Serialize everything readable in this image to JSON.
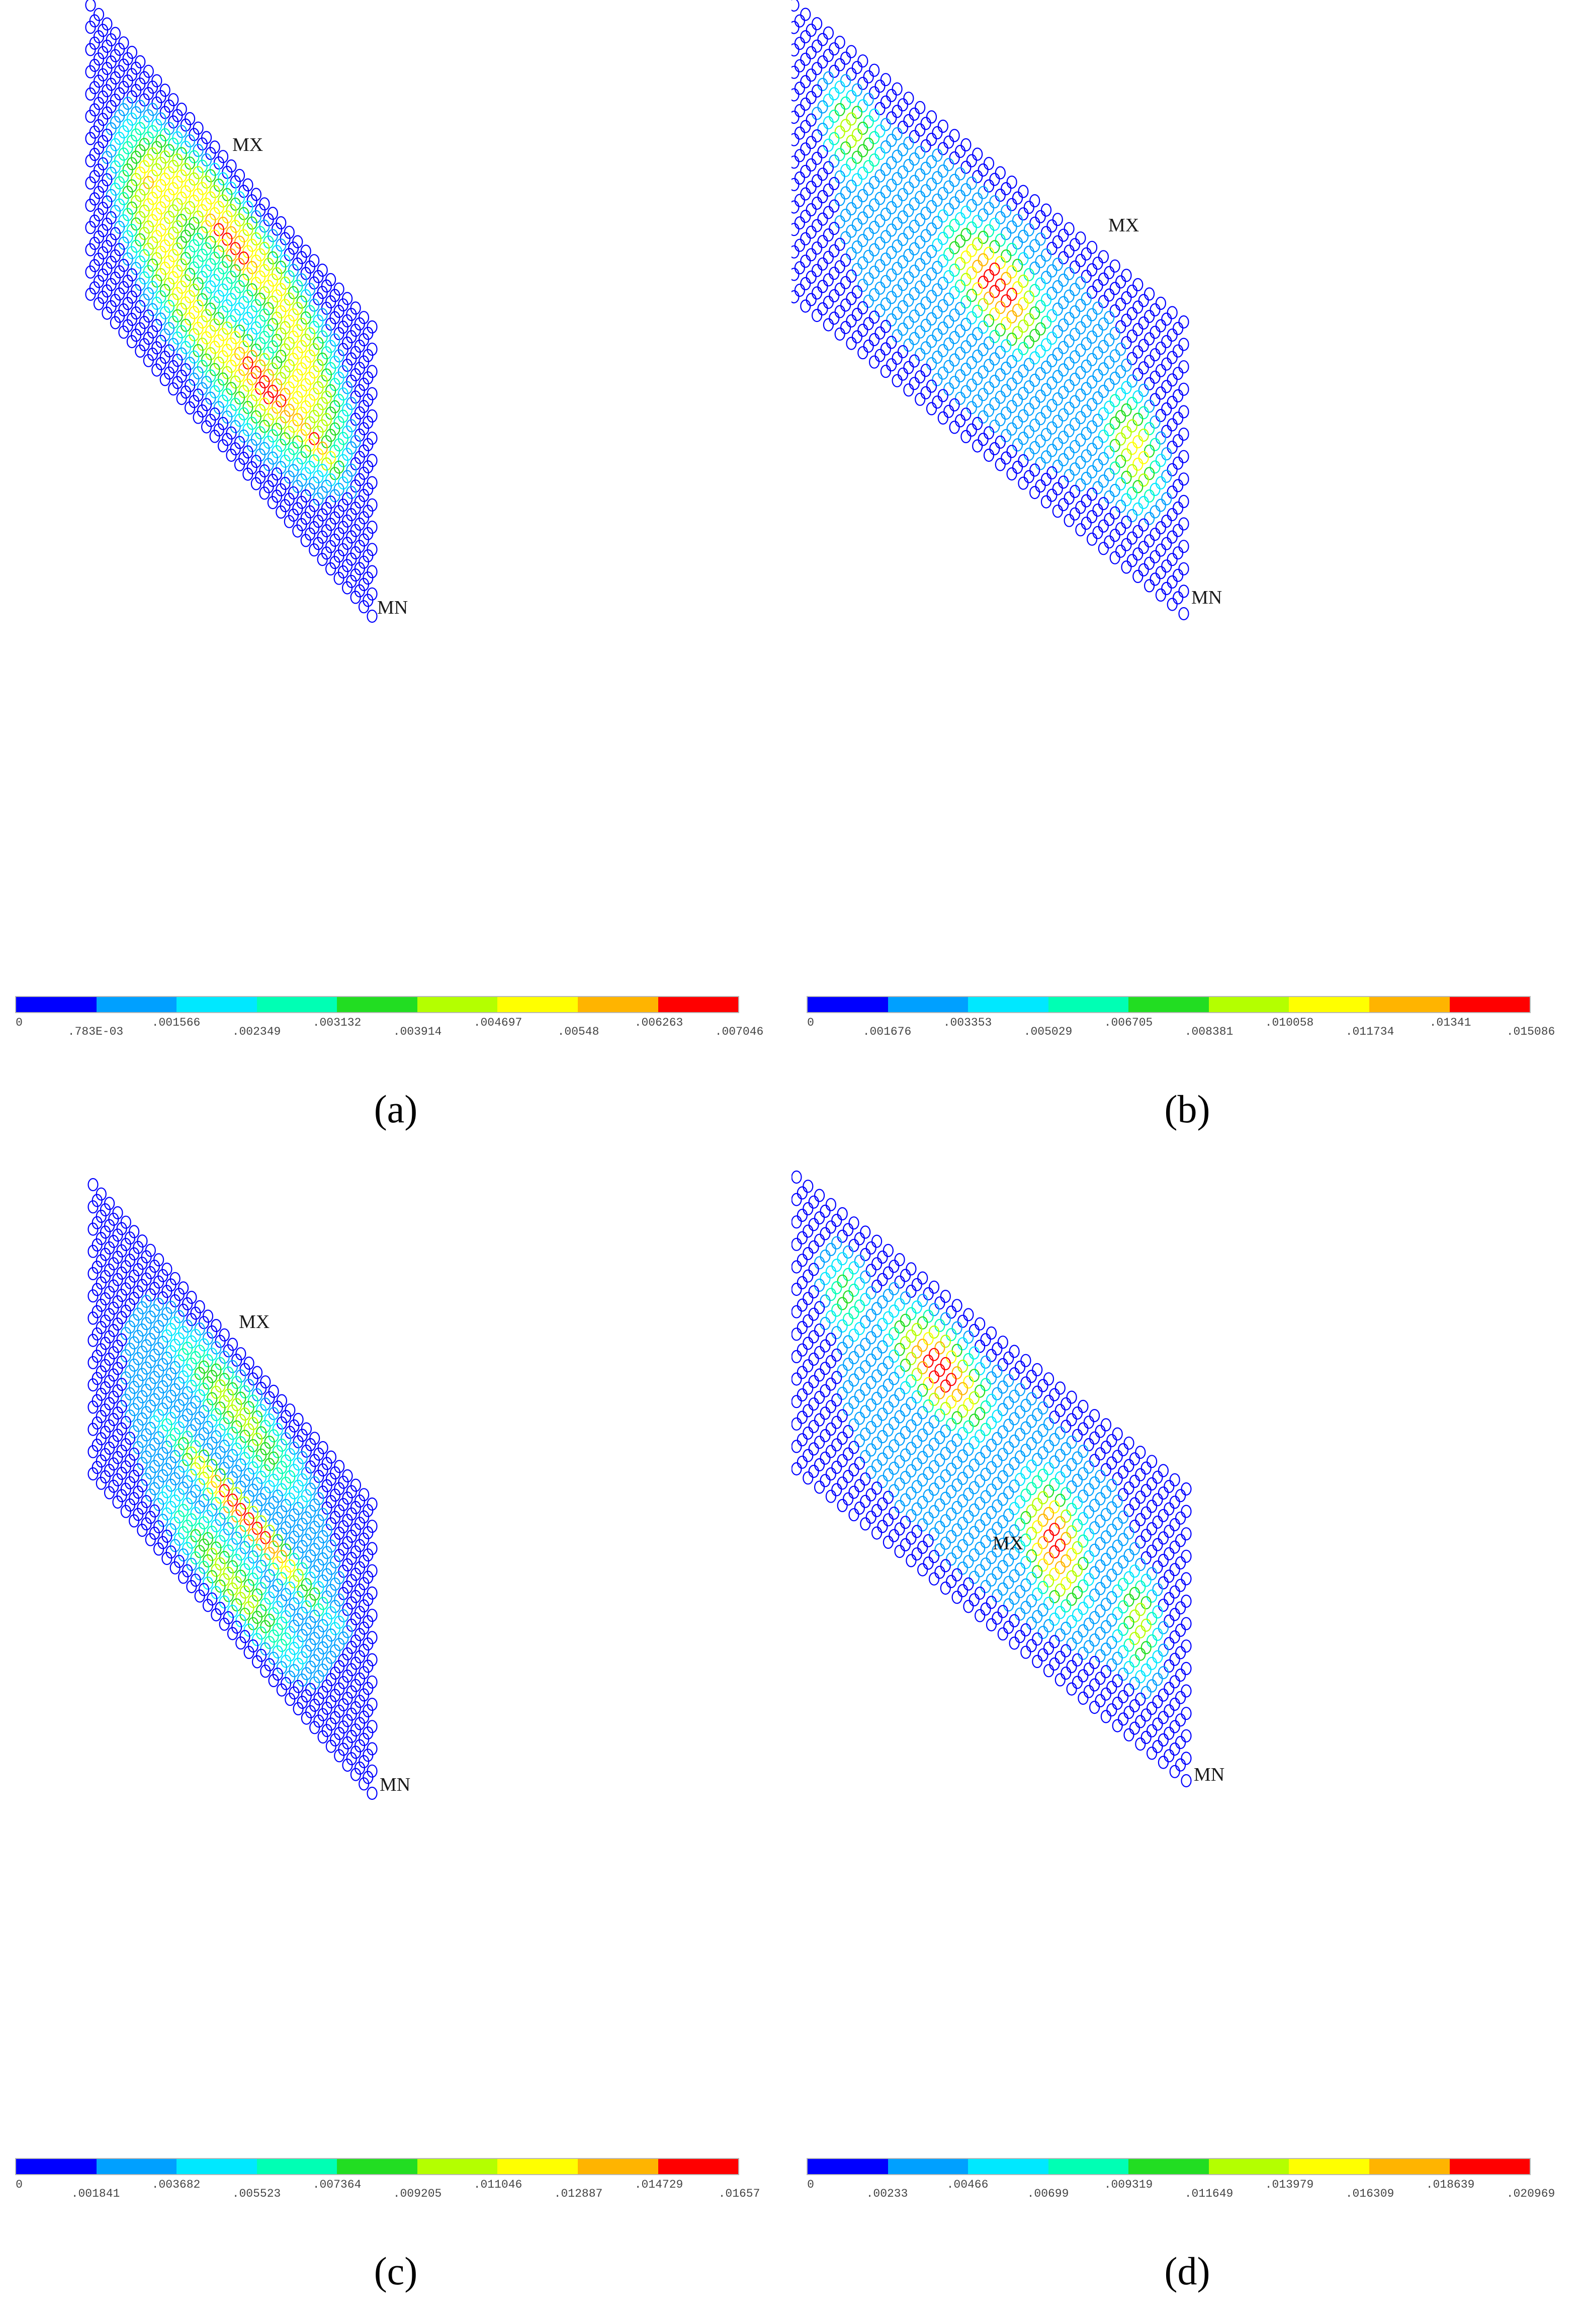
{
  "colormap": [
    "#0000ff",
    "#00a0ff",
    "#00e8ff",
    "#00ffb4",
    "#22dd22",
    "#b4ff00",
    "#ffff00",
    "#ffb400",
    "#ff0000"
  ],
  "edge_color": "#0000ff",
  "panels": [
    {
      "id": "a",
      "caption": "(a)",
      "mx_label": "MX",
      "mn_label": "MN",
      "legend_ticks": [
        "0",
        ".783E-03",
        ".001566",
        ".002349",
        ".003132",
        ".003914",
        ".004697",
        ".00548",
        ".006263",
        ".007046"
      ],
      "max_value": 0.007046,
      "hotspots": [
        {
          "u": 0.5,
          "v": 0.28,
          "level": 1.0,
          "sx": 0.15,
          "sy": 0.08
        },
        {
          "u": 0.62,
          "v": 0.62,
          "level": 1.0,
          "sx": 0.17,
          "sy": 0.08
        },
        {
          "u": 0.8,
          "v": 0.62,
          "level": 0.92,
          "sx": 0.07,
          "sy": 0.05
        },
        {
          "u": 0.2,
          "v": 0.37,
          "level": 0.85,
          "sx": 0.05,
          "sy": 0.04
        }
      ],
      "ring": {
        "u": 0.5,
        "v": 0.45,
        "level": 0.72,
        "radius": 0.26,
        "width": 0.17
      },
      "center_dip": {
        "u": 0.48,
        "v": 0.42,
        "level": 0.35,
        "sx": 0.1,
        "sy": 0.07
      }
    },
    {
      "id": "b",
      "caption": "(b)",
      "mx_label": "MX",
      "mn_label": "MN",
      "legend_ticks": [
        "0",
        ".001676",
        ".003353",
        ".005029",
        ".006705",
        ".008381",
        ".010058",
        ".011734",
        ".01341",
        ".015086"
      ],
      "max_value": 0.015086,
      "hotspots": [
        {
          "u": 0.52,
          "v": 0.4,
          "level": 1.0,
          "sx": 0.09,
          "sy": 0.12
        },
        {
          "u": 0.88,
          "v": 0.58,
          "level": 0.75,
          "sx": 0.06,
          "sy": 0.14
        },
        {
          "u": 0.14,
          "v": 0.26,
          "level": 0.68,
          "sx": 0.06,
          "sy": 0.12
        }
      ],
      "ring": null,
      "center_dip": null
    },
    {
      "id": "c",
      "caption": "(c)",
      "mx_label": "MX",
      "mn_label": "MN",
      "legend_ticks": [
        "0",
        ".001841",
        ".003682",
        ".005523",
        ".007364",
        ".009205",
        ".011046",
        ".012887",
        ".014729",
        ".01657"
      ],
      "max_value": 0.01657,
      "hotspots": [
        {
          "u": 0.55,
          "v": 0.55,
          "level": 1.0,
          "sx": 0.2,
          "sy": 0.05
        },
        {
          "u": 0.52,
          "v": 0.22,
          "level": 0.62,
          "sx": 0.18,
          "sy": 0.1
        },
        {
          "u": 0.5,
          "v": 0.82,
          "level": 0.62,
          "sx": 0.18,
          "sy": 0.1
        }
      ],
      "ring": null,
      "center_dip": null
    },
    {
      "id": "d",
      "caption": "(d)",
      "mx_label": "MX",
      "mn_label": "MN",
      "legend_ticks": [
        "0",
        ".00233",
        ".00466",
        ".00699",
        ".009319",
        ".011649",
        ".013979",
        ".016309",
        ".018639",
        ".020969"
      ],
      "max_value": 0.020969,
      "hotspots": [
        {
          "u": 0.37,
          "v": 0.27,
          "level": 1.0,
          "sx": 0.09,
          "sy": 0.11
        },
        {
          "u": 0.66,
          "v": 0.55,
          "level": 0.98,
          "sx": 0.06,
          "sy": 0.15
        },
        {
          "u": 0.88,
          "v": 0.6,
          "level": 0.62,
          "sx": 0.05,
          "sy": 0.14
        },
        {
          "u": 0.11,
          "v": 0.24,
          "level": 0.6,
          "sx": 0.05,
          "sy": 0.13
        }
      ],
      "ring": null,
      "center_dip": null
    }
  ]
}
